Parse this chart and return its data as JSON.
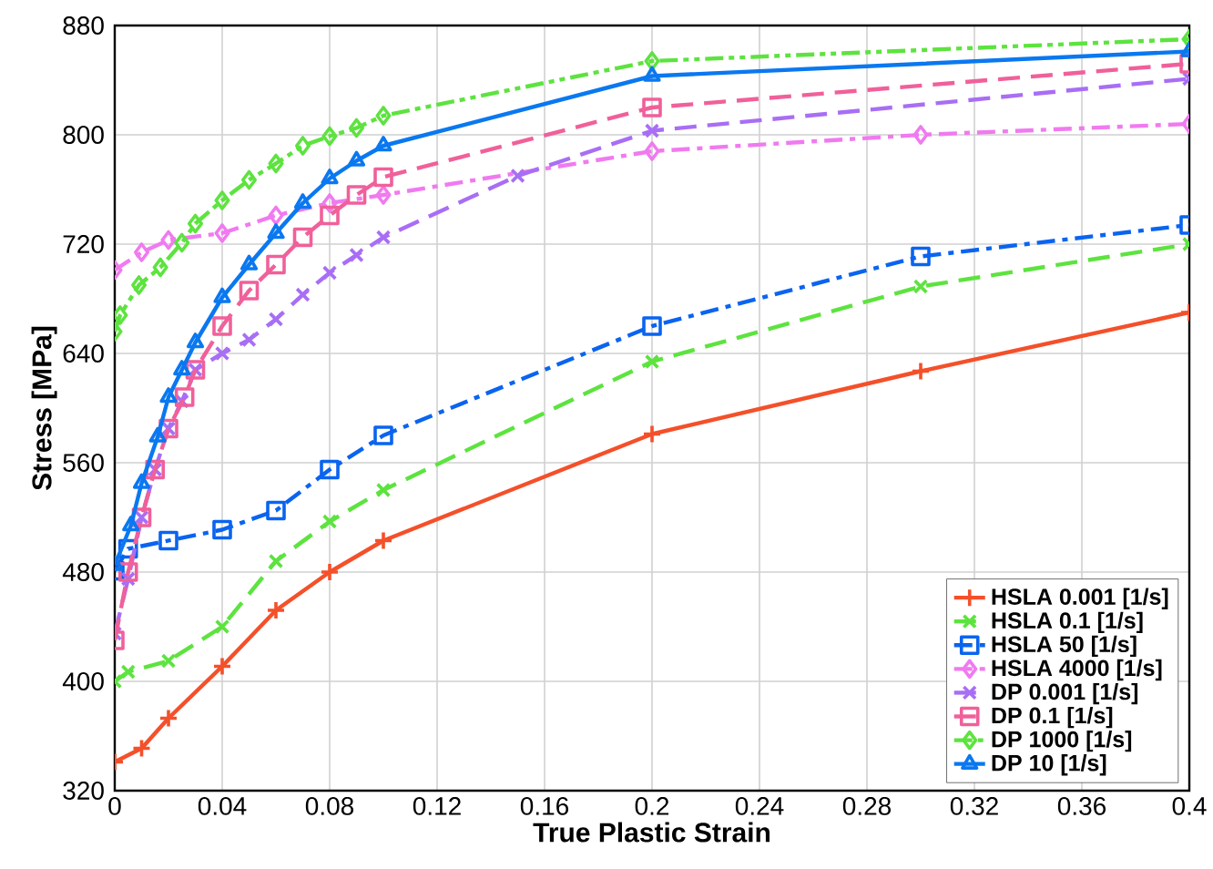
{
  "chart_data": {
    "type": "line",
    "xlabel": "True Plastic Strain",
    "ylabel": "Stress [MPa]",
    "xlim": [
      0,
      0.4
    ],
    "xticks": [
      0,
      0.04,
      0.08,
      0.12,
      0.16,
      0.2,
      0.24,
      0.28,
      0.32,
      0.36,
      0.4
    ],
    "ylim": [
      320,
      880
    ],
    "yticks": [
      320,
      400,
      480,
      560,
      640,
      720,
      800,
      880
    ],
    "grid": true,
    "legend": "bottom right",
    "series": [
      {
        "name": "HSLA 0.001 [1/s]",
        "color": "#f4502a",
        "marker": "plus",
        "line_style": "solid",
        "x": [
          0,
          0.01,
          0.02,
          0.04,
          0.06,
          0.08,
          0.1,
          0.2,
          0.3,
          0.4
        ],
        "values": [
          341,
          351,
          373,
          411,
          452,
          480,
          503,
          581,
          627,
          670
        ]
      },
      {
        "name": "HSLA 0.1 [1/s]",
        "color": "#5de33f",
        "marker": "cross",
        "line_style": "dashed",
        "x": [
          0,
          0.005,
          0.02,
          0.04,
          0.06,
          0.08,
          0.1,
          0.2,
          0.3,
          0.4
        ],
        "values": [
          400,
          407,
          415,
          440,
          488,
          517,
          540,
          634,
          689,
          720
        ]
      },
      {
        "name": "HSLA 50 [1/s]",
        "color": "#0a64f0",
        "marker": "square",
        "line_style": "dashdot",
        "x": [
          0,
          0.005,
          0.02,
          0.04,
          0.06,
          0.08,
          0.1,
          0.2,
          0.3,
          0.4
        ],
        "values": [
          481,
          497,
          503,
          511,
          525,
          555,
          580,
          660,
          711,
          734
        ]
      },
      {
        "name": "HSLA 4000 [1/s]",
        "color": "#f07af0",
        "marker": "diamond",
        "line_style": "dashdot",
        "x": [
          0,
          0.01,
          0.02,
          0.04,
          0.06,
          0.08,
          0.1,
          0.2,
          0.3,
          0.4
        ],
        "values": [
          701,
          714,
          723,
          728,
          741,
          750,
          756,
          788,
          800,
          808
        ]
      },
      {
        "name": "DP 0.001 [1/s]",
        "color": "#a86ef5",
        "marker": "cross",
        "line_style": "dashed",
        "x": [
          0,
          0.005,
          0.01,
          0.015,
          0.02,
          0.025,
          0.03,
          0.04,
          0.05,
          0.06,
          0.07,
          0.08,
          0.09,
          0.1,
          0.15,
          0.2,
          0.4
        ],
        "values": [
          435,
          475,
          520,
          555,
          585,
          605,
          628,
          640,
          650,
          665,
          683,
          699,
          712,
          725,
          770,
          803,
          841
        ]
      },
      {
        "name": "DP 0.1 [1/s]",
        "color": "#f0609a",
        "marker": "square",
        "line_style": "dashed",
        "x": [
          0,
          0.005,
          0.01,
          0.015,
          0.02,
          0.026,
          0.03,
          0.04,
          0.05,
          0.06,
          0.07,
          0.08,
          0.09,
          0.1,
          0.2,
          0.4
        ],
        "values": [
          430,
          480,
          520,
          555,
          585,
          608,
          628,
          660,
          686,
          705,
          725,
          741,
          756,
          769,
          820,
          852
        ]
      },
      {
        "name": "DP 1000 [1/s]",
        "color": "#5de33f",
        "marker": "diamond",
        "line_style": "dashdotdot",
        "x": [
          0,
          0.002,
          0.009,
          0.017,
          0.025,
          0.03,
          0.04,
          0.05,
          0.06,
          0.07,
          0.08,
          0.09,
          0.1,
          0.2,
          0.4
        ],
        "values": [
          656,
          668,
          690,
          703,
          721,
          735,
          752,
          767,
          779,
          792,
          799,
          805,
          814,
          854,
          870
        ]
      },
      {
        "name": "DP 10 [1/s]",
        "color": "#0a78f0",
        "marker": "triangle",
        "line_style": "solid",
        "x": [
          0,
          0.006,
          0.01,
          0.016,
          0.02,
          0.025,
          0.03,
          0.04,
          0.05,
          0.06,
          0.07,
          0.08,
          0.09,
          0.1,
          0.2,
          0.4
        ],
        "values": [
          485,
          514,
          545,
          579,
          608,
          628,
          648,
          681,
          705,
          728,
          750,
          768,
          781,
          792,
          843,
          861
        ]
      }
    ]
  }
}
